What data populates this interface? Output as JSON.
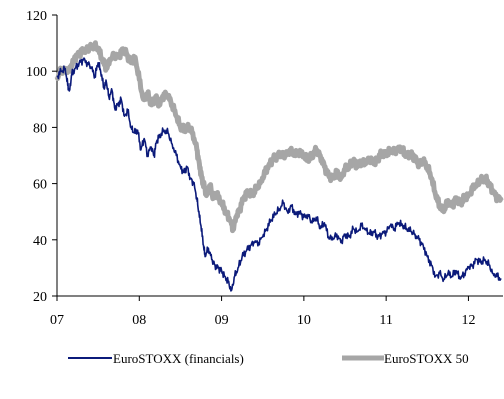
{
  "chart_data": {
    "type": "line",
    "title": "",
    "xlabel": "",
    "ylabel": "",
    "xlim": [
      2007.0,
      2012.42
    ],
    "ylim": [
      20,
      120
    ],
    "y_ticks": [
      20,
      40,
      60,
      80,
      100,
      120
    ],
    "x_ticks": [
      {
        "value": 2007,
        "label": "07"
      },
      {
        "value": 2008,
        "label": "08"
      },
      {
        "value": 2009,
        "label": "09"
      },
      {
        "value": 2010,
        "label": "10"
      },
      {
        "value": 2011,
        "label": "11"
      },
      {
        "value": 2012,
        "label": "12"
      }
    ],
    "grid": false,
    "legend_position": "bottom",
    "series": [
      {
        "name": "EuroSTOXX (financials)",
        "color": "#0b1a7a",
        "points": [
          [
            2007.0,
            98
          ],
          [
            2007.05,
            100
          ],
          [
            2007.1,
            101
          ],
          [
            2007.13,
            95
          ],
          [
            2007.15,
            93
          ],
          [
            2007.18,
            99
          ],
          [
            2007.22,
            101
          ],
          [
            2007.27,
            103
          ],
          [
            2007.32,
            104
          ],
          [
            2007.37,
            103
          ],
          [
            2007.42,
            101
          ],
          [
            2007.46,
            98
          ],
          [
            2007.5,
            103
          ],
          [
            2007.53,
            100
          ],
          [
            2007.57,
            94
          ],
          [
            2007.6,
            96
          ],
          [
            2007.63,
            91
          ],
          [
            2007.67,
            93
          ],
          [
            2007.7,
            87
          ],
          [
            2007.74,
            88
          ],
          [
            2007.78,
            90
          ],
          [
            2007.82,
            84
          ],
          [
            2007.86,
            86
          ],
          [
            2007.9,
            80
          ],
          [
            2007.94,
            78
          ],
          [
            2007.98,
            79
          ],
          [
            2008.02,
            72
          ],
          [
            2008.06,
            76
          ],
          [
            2008.1,
            70
          ],
          [
            2008.14,
            73
          ],
          [
            2008.18,
            70
          ],
          [
            2008.21,
            75
          ],
          [
            2008.25,
            77
          ],
          [
            2008.3,
            79
          ],
          [
            2008.35,
            78
          ],
          [
            2008.4,
            74
          ],
          [
            2008.45,
            70
          ],
          [
            2008.5,
            66
          ],
          [
            2008.54,
            64
          ],
          [
            2008.58,
            66
          ],
          [
            2008.62,
            62
          ],
          [
            2008.66,
            60
          ],
          [
            2008.7,
            55
          ],
          [
            2008.72,
            50
          ],
          [
            2008.75,
            45
          ],
          [
            2008.78,
            38
          ],
          [
            2008.8,
            34
          ],
          [
            2008.84,
            37
          ],
          [
            2008.88,
            33
          ],
          [
            2008.92,
            31
          ],
          [
            2008.96,
            30
          ],
          [
            2009.0,
            29
          ],
          [
            2009.04,
            27
          ],
          [
            2009.08,
            25
          ],
          [
            2009.12,
            22
          ],
          [
            2009.16,
            27
          ],
          [
            2009.2,
            30
          ],
          [
            2009.25,
            34
          ],
          [
            2009.3,
            36
          ],
          [
            2009.35,
            38
          ],
          [
            2009.4,
            39
          ],
          [
            2009.45,
            39
          ],
          [
            2009.5,
            41
          ],
          [
            2009.55,
            44
          ],
          [
            2009.6,
            47
          ],
          [
            2009.65,
            49
          ],
          [
            2009.7,
            51
          ],
          [
            2009.75,
            53
          ],
          [
            2009.8,
            50
          ],
          [
            2009.85,
            52
          ],
          [
            2009.9,
            49
          ],
          [
            2009.95,
            50
          ],
          [
            2010.0,
            48
          ],
          [
            2010.05,
            49
          ],
          [
            2010.1,
            46
          ],
          [
            2010.15,
            48
          ],
          [
            2010.2,
            44
          ],
          [
            2010.25,
            46
          ],
          [
            2010.3,
            41
          ],
          [
            2010.35,
            40
          ],
          [
            2010.4,
            42
          ],
          [
            2010.45,
            39
          ],
          [
            2010.5,
            42
          ],
          [
            2010.55,
            41
          ],
          [
            2010.6,
            44
          ],
          [
            2010.65,
            43
          ],
          [
            2010.7,
            45
          ],
          [
            2010.75,
            44
          ],
          [
            2010.8,
            42
          ],
          [
            2010.85,
            43
          ],
          [
            2010.9,
            41
          ],
          [
            2010.95,
            42
          ],
          [
            2011.0,
            43
          ],
          [
            2011.05,
            45
          ],
          [
            2011.1,
            44
          ],
          [
            2011.15,
            46
          ],
          [
            2011.2,
            45
          ],
          [
            2011.25,
            44
          ],
          [
            2011.3,
            43
          ],
          [
            2011.35,
            42
          ],
          [
            2011.4,
            40
          ],
          [
            2011.45,
            38
          ],
          [
            2011.5,
            34
          ],
          [
            2011.55,
            31
          ],
          [
            2011.6,
            27
          ],
          [
            2011.65,
            28
          ],
          [
            2011.7,
            26
          ],
          [
            2011.75,
            28
          ],
          [
            2011.8,
            27
          ],
          [
            2011.85,
            29
          ],
          [
            2011.9,
            26
          ],
          [
            2011.95,
            28
          ],
          [
            2012.0,
            30
          ],
          [
            2012.05,
            31
          ],
          [
            2012.1,
            33
          ],
          [
            2012.15,
            32
          ],
          [
            2012.2,
            33
          ],
          [
            2012.25,
            31
          ],
          [
            2012.3,
            28
          ],
          [
            2012.35,
            27
          ],
          [
            2012.4,
            26
          ]
        ]
      },
      {
        "name": "EuroSTOXX 50",
        "color": "#a6a6a6",
        "points": [
          [
            2007.0,
            98
          ],
          [
            2007.05,
            100
          ],
          [
            2007.1,
            101
          ],
          [
            2007.15,
            100
          ],
          [
            2007.2,
            104
          ],
          [
            2007.25,
            106
          ],
          [
            2007.3,
            107
          ],
          [
            2007.35,
            108
          ],
          [
            2007.4,
            108
          ],
          [
            2007.45,
            109
          ],
          [
            2007.5,
            108
          ],
          [
            2007.55,
            104
          ],
          [
            2007.6,
            101
          ],
          [
            2007.65,
            104
          ],
          [
            2007.7,
            106
          ],
          [
            2007.75,
            105
          ],
          [
            2007.8,
            108
          ],
          [
            2007.85,
            106
          ],
          [
            2007.9,
            103
          ],
          [
            2007.95,
            105
          ],
          [
            2008.0,
            97
          ],
          [
            2008.05,
            90
          ],
          [
            2008.1,
            92
          ],
          [
            2008.15,
            88
          ],
          [
            2008.2,
            91
          ],
          [
            2008.25,
            88
          ],
          [
            2008.3,
            92
          ],
          [
            2008.35,
            91
          ],
          [
            2008.4,
            88
          ],
          [
            2008.45,
            84
          ],
          [
            2008.5,
            80
          ],
          [
            2008.55,
            79
          ],
          [
            2008.6,
            80
          ],
          [
            2008.65,
            78
          ],
          [
            2008.7,
            72
          ],
          [
            2008.73,
            67
          ],
          [
            2008.76,
            62
          ],
          [
            2008.79,
            59
          ],
          [
            2008.82,
            56
          ],
          [
            2008.86,
            59
          ],
          [
            2008.9,
            55
          ],
          [
            2008.94,
            56
          ],
          [
            2009.0,
            53
          ],
          [
            2009.05,
            50
          ],
          [
            2009.1,
            47
          ],
          [
            2009.14,
            44
          ],
          [
            2009.18,
            48
          ],
          [
            2009.22,
            51
          ],
          [
            2009.27,
            55
          ],
          [
            2009.32,
            57
          ],
          [
            2009.37,
            56
          ],
          [
            2009.42,
            58
          ],
          [
            2009.48,
            61
          ],
          [
            2009.53,
            64
          ],
          [
            2009.58,
            67
          ],
          [
            2009.63,
            69
          ],
          [
            2009.68,
            70
          ],
          [
            2009.73,
            71
          ],
          [
            2009.78,
            70
          ],
          [
            2009.83,
            72
          ],
          [
            2009.88,
            70
          ],
          [
            2009.93,
            71
          ],
          [
            2010.0,
            70
          ],
          [
            2010.05,
            68
          ],
          [
            2010.1,
            70
          ],
          [
            2010.15,
            72
          ],
          [
            2010.2,
            70
          ],
          [
            2010.25,
            66
          ],
          [
            2010.3,
            63
          ],
          [
            2010.35,
            62
          ],
          [
            2010.4,
            64
          ],
          [
            2010.45,
            62
          ],
          [
            2010.5,
            65
          ],
          [
            2010.55,
            66
          ],
          [
            2010.6,
            68
          ],
          [
            2010.65,
            66
          ],
          [
            2010.7,
            68
          ],
          [
            2010.75,
            67
          ],
          [
            2010.8,
            69
          ],
          [
            2010.85,
            67
          ],
          [
            2010.9,
            69
          ],
          [
            2010.95,
            71
          ],
          [
            2011.0,
            70
          ],
          [
            2011.05,
            72
          ],
          [
            2011.1,
            71
          ],
          [
            2011.15,
            73
          ],
          [
            2011.2,
            72
          ],
          [
            2011.25,
            70
          ],
          [
            2011.3,
            71
          ],
          [
            2011.35,
            69
          ],
          [
            2011.4,
            67
          ],
          [
            2011.45,
            68
          ],
          [
            2011.5,
            66
          ],
          [
            2011.55,
            62
          ],
          [
            2011.6,
            56
          ],
          [
            2011.65,
            52
          ],
          [
            2011.7,
            50
          ],
          [
            2011.75,
            54
          ],
          [
            2011.8,
            52
          ],
          [
            2011.85,
            55
          ],
          [
            2011.9,
            53
          ],
          [
            2011.95,
            55
          ],
          [
            2012.0,
            56
          ],
          [
            2012.05,
            58
          ],
          [
            2012.1,
            60
          ],
          [
            2012.15,
            61
          ],
          [
            2012.2,
            62
          ],
          [
            2012.25,
            60
          ],
          [
            2012.3,
            57
          ],
          [
            2012.35,
            55
          ],
          [
            2012.4,
            54
          ]
        ]
      }
    ]
  }
}
